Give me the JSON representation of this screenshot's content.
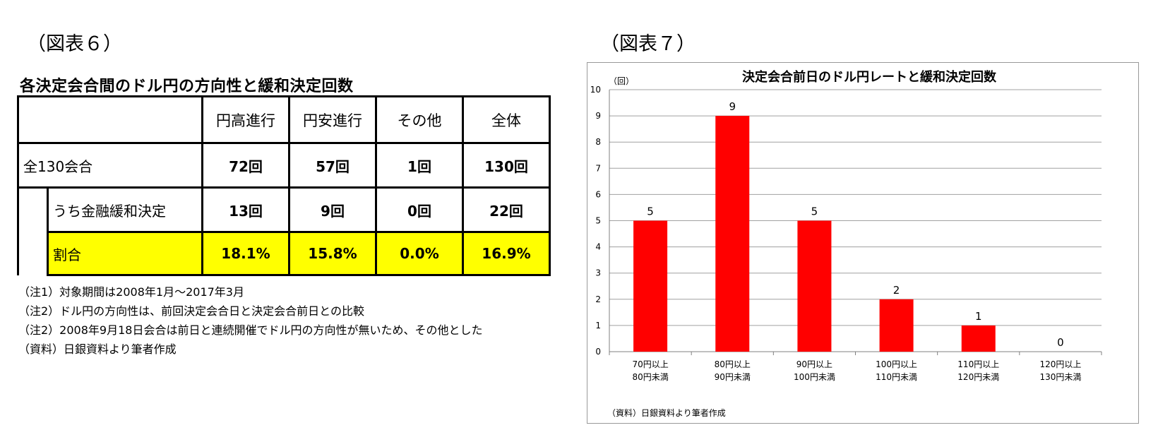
{
  "figure6": {
    "label": "（図表６）",
    "title": "各決定会合間のドル円の方向性と緩和決定回数",
    "columns": [
      "円高進行",
      "円安進行",
      "その他",
      "全体"
    ],
    "rows": [
      {
        "label": "全130会合",
        "values": [
          "72回",
          "57回",
          "1回",
          "130回"
        ]
      },
      {
        "label": "うち金融緩和決定",
        "values": [
          "13回",
          "9回",
          "0回",
          "22回"
        ]
      },
      {
        "label": "割合",
        "values": [
          "18.1%",
          "15.8%",
          "0.0%",
          "16.9%"
        ]
      }
    ],
    "notes": [
      "（注1）対象期間は2008年1月～2017年3月",
      "（注2）ドル円の方向性は、前回決定会合日と決定会合前日との比較",
      "（注2）2008年9月18日会合は前日と連続開催でドル円の方向性が無いため、その他とした",
      "（資料）日銀資料より筆者作成"
    ],
    "highlight_color": "#ffff00"
  },
  "figure7": {
    "label": "（図表７）"
  },
  "chart_data": {
    "type": "bar",
    "title": "決定会合前日のドル円レートと緩和決定回数",
    "ylabel": "（回）",
    "xlabel": "",
    "categories": [
      [
        "70円以上",
        "80円未満"
      ],
      [
        "80円以上",
        "90円未満"
      ],
      [
        "90円以上",
        "100円未満"
      ],
      [
        "100円以上",
        "110円未満"
      ],
      [
        "110円以上",
        "120円未満"
      ],
      [
        "120円以上",
        "130円未満"
      ]
    ],
    "values": [
      5,
      9,
      5,
      2,
      1,
      0
    ],
    "ylim": [
      0,
      10
    ],
    "yticks": [
      0,
      1,
      2,
      3,
      4,
      5,
      6,
      7,
      8,
      9,
      10
    ],
    "grid": true,
    "data_labels": true,
    "bar_color": "#ff0000",
    "source": "（資料）日銀資料より筆者作成"
  }
}
